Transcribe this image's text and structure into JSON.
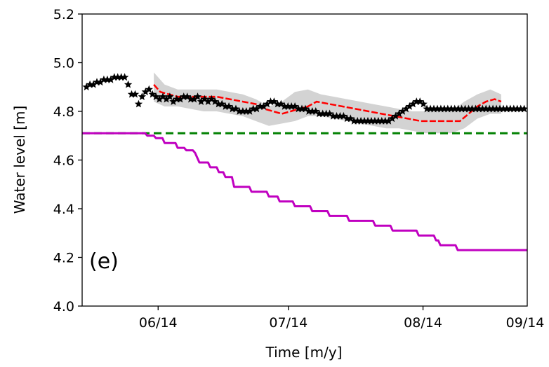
{
  "chart_data": {
    "type": "line",
    "panel_label": "(e)",
    "xlabel": "Time [m/y]",
    "ylabel": "Water level [m]",
    "xlim": [
      -1,
      101.5
    ],
    "ylim": [
      4.0,
      5.2
    ],
    "x_ticks": [
      {
        "value": 16.5,
        "label": "06/14"
      },
      {
        "value": 46.5,
        "label": "07/14"
      },
      {
        "value": 77.5,
        "label": "08/14"
      },
      {
        "value": 108.5,
        "label": "09/14"
      }
    ],
    "y_ticks": [
      {
        "value": 4.0,
        "label": "4.0"
      },
      {
        "value": 4.2,
        "label": "4.2"
      },
      {
        "value": 4.4,
        "label": "4.4"
      },
      {
        "value": 4.6,
        "label": "4.6"
      },
      {
        "value": 4.8,
        "label": "4.8"
      },
      {
        "value": 5.0,
        "label": "5.0"
      },
      {
        "value": 5.2,
        "label": "5.2"
      }
    ],
    "grid": false,
    "legend": "none",
    "colors": {
      "observed": "#000000",
      "predicted": "#ff0000",
      "uncertainty": "#d3d3d3",
      "threshold": "#008000",
      "magenta": "#c000c0"
    },
    "observed_x": [
      0.0,
      0.8,
      1.6,
      2.4,
      3.2,
      4.0,
      4.8,
      5.6,
      6.4,
      7.2,
      8.0,
      8.8,
      9.6,
      10.4,
      11.2,
      12.0,
      12.8,
      13.6,
      14.4,
      15.2,
      16.0,
      16.8,
      17.6,
      18.4,
      19.2,
      20.0,
      20.8,
      21.6,
      22.4,
      23.2,
      24.0,
      24.8,
      25.6,
      26.4,
      27.2,
      28.0,
      28.8,
      29.6,
      30.4,
      31.2,
      32.0,
      32.8,
      33.6,
      34.4,
      35.2,
      36.0,
      36.8,
      37.6,
      38.4,
      39.2,
      40.0,
      40.8,
      41.6,
      42.4,
      43.2,
      44.0,
      44.8,
      45.6,
      46.4,
      47.2,
      48.0,
      48.8,
      49.6,
      50.4,
      51.2,
      52.0,
      52.8,
      53.6,
      54.4,
      55.2,
      56.0,
      56.8,
      57.6,
      58.4,
      59.2,
      60.0,
      60.8,
      61.6,
      62.4,
      63.2,
      64.0,
      64.8,
      65.6,
      66.4,
      67.2,
      68.0,
      68.8,
      69.6,
      70.4,
      71.2,
      72.0,
      72.8,
      73.6,
      74.4,
      75.2,
      76.0,
      76.8,
      77.6,
      78.4,
      79.2,
      80.0,
      80.8,
      81.6,
      82.4,
      83.2,
      84.0,
      84.8,
      85.6,
      86.4,
      87.2,
      88.0,
      88.8,
      89.6,
      90.4,
      91.2,
      92.0,
      92.8,
      93.6,
      94.4,
      95.2,
      96.0,
      96.8,
      97.6,
      98.4,
      99.2,
      100.0,
      100.8
    ],
    "observed_y": [
      4.9,
      4.91,
      4.91,
      4.92,
      4.92,
      4.93,
      4.93,
      4.93,
      4.94,
      4.94,
      4.94,
      4.94,
      4.91,
      4.87,
      4.87,
      4.83,
      4.86,
      4.88,
      4.89,
      4.87,
      4.86,
      4.85,
      4.86,
      4.85,
      4.86,
      4.84,
      4.85,
      4.85,
      4.86,
      4.86,
      4.85,
      4.85,
      4.86,
      4.84,
      4.85,
      4.84,
      4.85,
      4.84,
      4.83,
      4.83,
      4.82,
      4.82,
      4.81,
      4.81,
      4.8,
      4.8,
      4.8,
      4.8,
      4.81,
      4.81,
      4.82,
      4.82,
      4.83,
      4.84,
      4.84,
      4.83,
      4.83,
      4.82,
      4.82,
      4.82,
      4.82,
      4.81,
      4.81,
      4.81,
      4.8,
      4.8,
      4.8,
      4.79,
      4.79,
      4.79,
      4.79,
      4.78,
      4.78,
      4.78,
      4.78,
      4.77,
      4.77,
      4.76,
      4.76,
      4.76,
      4.76,
      4.76,
      4.76,
      4.76,
      4.76,
      4.76,
      4.76,
      4.76,
      4.77,
      4.78,
      4.79,
      4.8,
      4.81,
      4.82,
      4.83,
      4.84,
      4.84,
      4.83,
      4.81,
      4.81,
      4.81,
      4.81,
      4.81,
      4.81,
      4.81,
      4.81,
      4.81,
      4.81,
      4.81,
      4.81,
      4.81,
      4.81,
      4.81,
      4.81,
      4.81,
      4.81,
      4.81,
      4.81,
      4.81,
      4.81,
      4.81,
      4.81,
      4.81,
      4.81,
      4.81,
      4.81,
      4.81
    ],
    "predicted": {
      "x": [
        15.5,
        17,
        19,
        21,
        24,
        27,
        30,
        33,
        36,
        39,
        41,
        43,
        45,
        47,
        49,
        51,
        53,
        56,
        59,
        62,
        65,
        68,
        71,
        74,
        77,
        80,
        83,
        86,
        88,
        90,
        92,
        94,
        95.5
      ],
      "y": [
        4.91,
        4.88,
        4.87,
        4.86,
        4.86,
        4.86,
        4.86,
        4.85,
        4.84,
        4.83,
        4.81,
        4.8,
        4.79,
        4.8,
        4.81,
        4.82,
        4.84,
        4.83,
        4.82,
        4.81,
        4.8,
        4.79,
        4.78,
        4.77,
        4.76,
        4.76,
        4.76,
        4.76,
        4.79,
        4.82,
        4.84,
        4.85,
        4.84
      ]
    },
    "uncertainty_band": {
      "x": [
        15.5,
        18,
        21,
        24,
        27,
        30,
        33,
        36,
        39,
        42,
        45,
        48,
        51,
        54,
        57,
        60,
        63,
        66,
        69,
        72,
        75,
        78,
        81,
        84,
        87,
        90,
        93,
        95.5
      ],
      "upper": [
        4.96,
        4.91,
        4.89,
        4.89,
        4.89,
        4.89,
        4.88,
        4.87,
        4.85,
        4.82,
        4.84,
        4.88,
        4.89,
        4.87,
        4.86,
        4.85,
        4.84,
        4.83,
        4.82,
        4.81,
        4.8,
        4.8,
        4.8,
        4.8,
        4.84,
        4.87,
        4.89,
        4.87
      ],
      "lower": [
        4.84,
        4.82,
        4.82,
        4.81,
        4.8,
        4.8,
        4.79,
        4.78,
        4.76,
        4.74,
        4.75,
        4.76,
        4.78,
        4.78,
        4.77,
        4.76,
        4.75,
        4.74,
        4.73,
        4.73,
        4.72,
        4.71,
        4.71,
        4.71,
        4.73,
        4.77,
        4.79,
        4.79
      ]
    },
    "threshold": {
      "x": [
        -1,
        101.5
      ],
      "y": 4.71
    },
    "magenta_series": {
      "x": [
        -1,
        13.5,
        14,
        15.5,
        16,
        17.5,
        18,
        20.5,
        21,
        22.5,
        23,
        24.5,
        25,
        25.5,
        26,
        28,
        28.5,
        30,
        30.5,
        31.5,
        32,
        33.5,
        34,
        37.5,
        38,
        41.5,
        42,
        44,
        44.5,
        47.5,
        48,
        51.5,
        52,
        55.5,
        56,
        60,
        60.5,
        66,
        66.5,
        70,
        70.5,
        76,
        76.5,
        80,
        80.5,
        81,
        81.5,
        85,
        85.5,
        101.5
      ],
      "y": [
        4.71,
        4.71,
        4.7,
        4.7,
        4.69,
        4.69,
        4.67,
        4.67,
        4.65,
        4.65,
        4.64,
        4.64,
        4.63,
        4.61,
        4.59,
        4.59,
        4.57,
        4.57,
        4.55,
        4.55,
        4.53,
        4.53,
        4.49,
        4.49,
        4.47,
        4.47,
        4.45,
        4.45,
        4.43,
        4.43,
        4.41,
        4.41,
        4.39,
        4.39,
        4.37,
        4.37,
        4.35,
        4.35,
        4.33,
        4.33,
        4.31,
        4.31,
        4.29,
        4.29,
        4.27,
        4.27,
        4.25,
        4.25,
        4.23,
        4.23
      ]
    }
  }
}
